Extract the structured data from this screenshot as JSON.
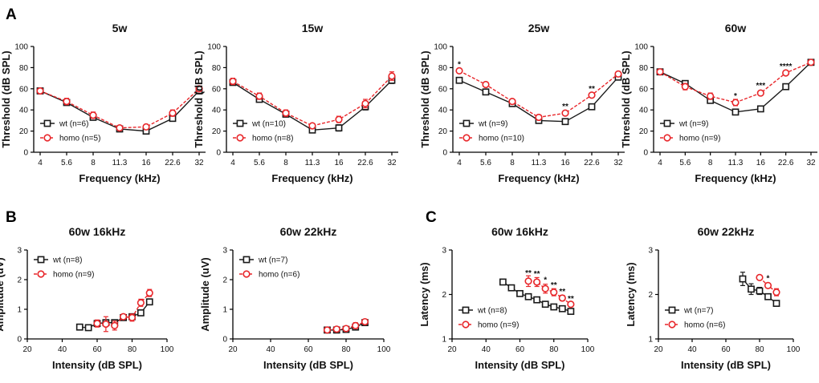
{
  "panel_labels": [
    "A",
    "B",
    "C"
  ],
  "colors": {
    "wt": "#1a1a1a",
    "homo": "#e8262a"
  },
  "chart_data": [
    {
      "type": "line",
      "panel": "A",
      "title": "5w",
      "xlabel": "Frequency (kHz)",
      "ylabel": "Threshold (dB SPL)",
      "categories": [
        "4",
        "5.6",
        "8",
        "11.3",
        "16",
        "22.6",
        "32"
      ],
      "ylim": [
        0,
        100
      ],
      "yticks": [
        0,
        20,
        40,
        60,
        80,
        100
      ],
      "legend_position": "bottom-left",
      "series": [
        {
          "name": "wt (n=6)",
          "key": "wt",
          "values": [
            58,
            47,
            33,
            22,
            20,
            32,
            58
          ],
          "err": [
            2,
            2,
            2,
            2,
            2,
            2,
            2
          ]
        },
        {
          "name": "homo (n=5)",
          "key": "homo",
          "values": [
            58,
            48,
            35,
            23,
            24,
            37,
            60
          ],
          "err": [
            2,
            3,
            3,
            2,
            2,
            3,
            2
          ]
        }
      ],
      "annotations": []
    },
    {
      "type": "line",
      "panel": "",
      "title": "15w",
      "xlabel": "Frequency (kHz)",
      "ylabel": "Threshold (dB SPL)",
      "categories": [
        "4",
        "5.6",
        "8",
        "11.3",
        "16",
        "22.6",
        "32"
      ],
      "ylim": [
        0,
        100
      ],
      "yticks": [
        0,
        20,
        40,
        60,
        80,
        100
      ],
      "legend_position": "bottom-left",
      "series": [
        {
          "name": "wt (n=10)",
          "key": "wt",
          "values": [
            66,
            50,
            36,
            21,
            23,
            43,
            68
          ],
          "err": [
            2,
            2,
            2,
            2,
            3,
            3,
            3
          ]
        },
        {
          "name": "homo (n=8)",
          "key": "homo",
          "values": [
            67,
            53,
            37,
            25,
            31,
            46,
            72
          ],
          "err": [
            3,
            3,
            3,
            2,
            3,
            4,
            4
          ]
        }
      ],
      "annotations": []
    },
    {
      "type": "line",
      "panel": "",
      "title": "25w",
      "xlabel": "Frequency (kHz)",
      "ylabel": "Threshold (dB SPL)",
      "categories": [
        "4",
        "5.6",
        "8",
        "11.3",
        "16",
        "22.6",
        "32"
      ],
      "ylim": [
        0,
        100
      ],
      "yticks": [
        0,
        20,
        40,
        60,
        80,
        100
      ],
      "legend_position": "bottom-left",
      "series": [
        {
          "name": "wt (n=9)",
          "key": "wt",
          "values": [
            68,
            57,
            46,
            30,
            29,
            43,
            71
          ],
          "err": [
            2,
            2,
            2,
            2,
            2,
            2,
            2
          ]
        },
        {
          "name": "homo (n=10)",
          "key": "homo",
          "values": [
            77,
            64,
            48,
            33,
            37,
            54,
            74
          ],
          "err": [
            2,
            2,
            2,
            2,
            2,
            2,
            2
          ]
        }
      ],
      "annotations": [
        {
          "text": "*",
          "x": "4",
          "y": 83
        },
        {
          "text": "**",
          "x": "16",
          "y": 43
        },
        {
          "text": "**",
          "x": "22.6",
          "y": 60
        }
      ]
    },
    {
      "type": "line",
      "panel": "",
      "title": "60w",
      "xlabel": "Frequency (kHz)",
      "ylabel": "Threshold (dB SPL)",
      "categories": [
        "4",
        "5.6",
        "8",
        "11.3",
        "16",
        "22.6",
        "32"
      ],
      "ylim": [
        0,
        100
      ],
      "yticks": [
        0,
        20,
        40,
        60,
        80,
        100
      ],
      "legend_position": "bottom-left",
      "series": [
        {
          "name": "wt (n=9)",
          "key": "wt",
          "values": [
            76,
            65,
            49,
            38,
            41,
            62,
            85
          ],
          "err": [
            2,
            2,
            2,
            2,
            2,
            2,
            2
          ]
        },
        {
          "name": "homo (n=9)",
          "key": "homo",
          "values": [
            76,
            62,
            53,
            47,
            56,
            75,
            85
          ],
          "err": [
            2,
            3,
            3,
            3,
            2,
            2,
            2
          ]
        }
      ],
      "annotations": [
        {
          "text": "*",
          "x": "11.3",
          "y": 53
        },
        {
          "text": "***",
          "x": "16",
          "y": 63
        },
        {
          "text": "****",
          "x": "22.6",
          "y": 81
        }
      ]
    },
    {
      "type": "line",
      "panel": "B",
      "title": "60w   16kHz",
      "xlabel": "Intensity (dB SPL)",
      "ylabel": "Amplitude (uV)",
      "xlim": [
        20,
        100
      ],
      "xticks": [
        20,
        40,
        60,
        80,
        100
      ],
      "ylim": [
        0,
        3
      ],
      "yticks": [
        0,
        1,
        2,
        3
      ],
      "legend_position": "top-left",
      "series": [
        {
          "name": "wt (n=8)",
          "key": "wt",
          "x": [
            50,
            55,
            60,
            65,
            70,
            75,
            80,
            85,
            90
          ],
          "values": [
            0.4,
            0.38,
            0.52,
            0.55,
            0.55,
            0.72,
            0.75,
            0.88,
            1.25
          ],
          "err": [
            0.04,
            0.04,
            0.05,
            0.06,
            0.06,
            0.06,
            0.08,
            0.08,
            0.1
          ]
        },
        {
          "name": "homo (n=9)",
          "key": "homo",
          "x": [
            60,
            65,
            70,
            75,
            80,
            85,
            90
          ],
          "values": [
            0.52,
            0.5,
            0.45,
            0.75,
            0.72,
            1.22,
            1.55
          ],
          "err": [
            0.12,
            0.25,
            0.15,
            0.08,
            0.12,
            0.12,
            0.12
          ]
        }
      ],
      "annotations": []
    },
    {
      "type": "line",
      "panel": "",
      "title": "60w   22kHz",
      "xlabel": "Intensity (dB SPL)",
      "ylabel": "Amplitude (uV)",
      "xlim": [
        20,
        100
      ],
      "xticks": [
        20,
        40,
        60,
        80,
        100
      ],
      "ylim": [
        0,
        3
      ],
      "yticks": [
        0,
        1,
        2,
        3
      ],
      "legend_position": "top-left",
      "series": [
        {
          "name": "wt (n=7)",
          "key": "wt",
          "x": [
            70,
            75,
            80,
            85,
            90
          ],
          "values": [
            0.3,
            0.3,
            0.32,
            0.4,
            0.55
          ],
          "err": [
            0.08,
            0.08,
            0.08,
            0.08,
            0.08
          ]
        },
        {
          "name": "homo (n=6)",
          "key": "homo",
          "x": [
            70,
            75,
            80,
            85,
            90
          ],
          "values": [
            0.3,
            0.33,
            0.35,
            0.45,
            0.58
          ],
          "err": [
            0.08,
            0.08,
            0.08,
            0.1,
            0.08
          ]
        }
      ],
      "annotations": []
    },
    {
      "type": "line",
      "panel": "C",
      "title": "60w   16kHz",
      "xlabel": "Intensity (dB SPL)",
      "ylabel": "Latency (ms)",
      "xlim": [
        20,
        100
      ],
      "xticks": [
        20,
        40,
        60,
        80,
        100
      ],
      "ylim": [
        1,
        3
      ],
      "yticks": [
        1,
        2,
        3
      ],
      "legend_position": "bottom-left",
      "series": [
        {
          "name": "wt (n=8)",
          "key": "wt",
          "x": [
            50,
            55,
            60,
            65,
            70,
            75,
            80,
            85,
            90
          ],
          "values": [
            2.28,
            2.15,
            2.02,
            1.95,
            1.88,
            1.78,
            1.72,
            1.68,
            1.62
          ],
          "err": [
            0.03,
            0.03,
            0.03,
            0.03,
            0.03,
            0.03,
            0.03,
            0.03,
            0.03
          ]
        },
        {
          "name": "homo (n=9)",
          "key": "homo",
          "x": [
            65,
            70,
            75,
            80,
            85,
            90
          ],
          "values": [
            2.3,
            2.28,
            2.13,
            2.05,
            1.92,
            1.78
          ],
          "err": [
            0.12,
            0.1,
            0.1,
            0.08,
            0.06,
            0.05
          ]
        }
      ],
      "annotations": [
        {
          "text": "**",
          "x": 65,
          "y": 2.48
        },
        {
          "text": "**",
          "x": 70,
          "y": 2.46
        },
        {
          "text": "*",
          "x": 75,
          "y": 2.32
        },
        {
          "text": "**",
          "x": 80,
          "y": 2.21
        },
        {
          "text": "**",
          "x": 85,
          "y": 2.06
        },
        {
          "text": "**",
          "x": 90,
          "y": 1.9
        }
      ]
    },
    {
      "type": "line",
      "panel": "",
      "title": "60w   22kHz",
      "xlabel": "Intensity (dB SPL)",
      "ylabel": "Latency (ms)",
      "xlim": [
        20,
        100
      ],
      "xticks": [
        20,
        40,
        60,
        80,
        100
      ],
      "ylim": [
        1,
        3
      ],
      "yticks": [
        1,
        2,
        3
      ],
      "legend_position": "bottom-left",
      "series": [
        {
          "name": "wt (n=7)",
          "key": "wt",
          "x": [
            70,
            75,
            80,
            85,
            90
          ],
          "values": [
            2.35,
            2.12,
            2.08,
            1.95,
            1.8
          ],
          "err": [
            0.15,
            0.12,
            0.08,
            0.05,
            0.04
          ]
        },
        {
          "name": "homo (n=6)",
          "key": "homo",
          "x": [
            80,
            85,
            90
          ],
          "values": [
            2.38,
            2.2,
            2.05
          ],
          "err": [
            0.04,
            0.05,
            0.08
          ]
        }
      ],
      "annotations": [
        {
          "text": "*",
          "x": 85,
          "y": 2.36
        }
      ]
    }
  ]
}
